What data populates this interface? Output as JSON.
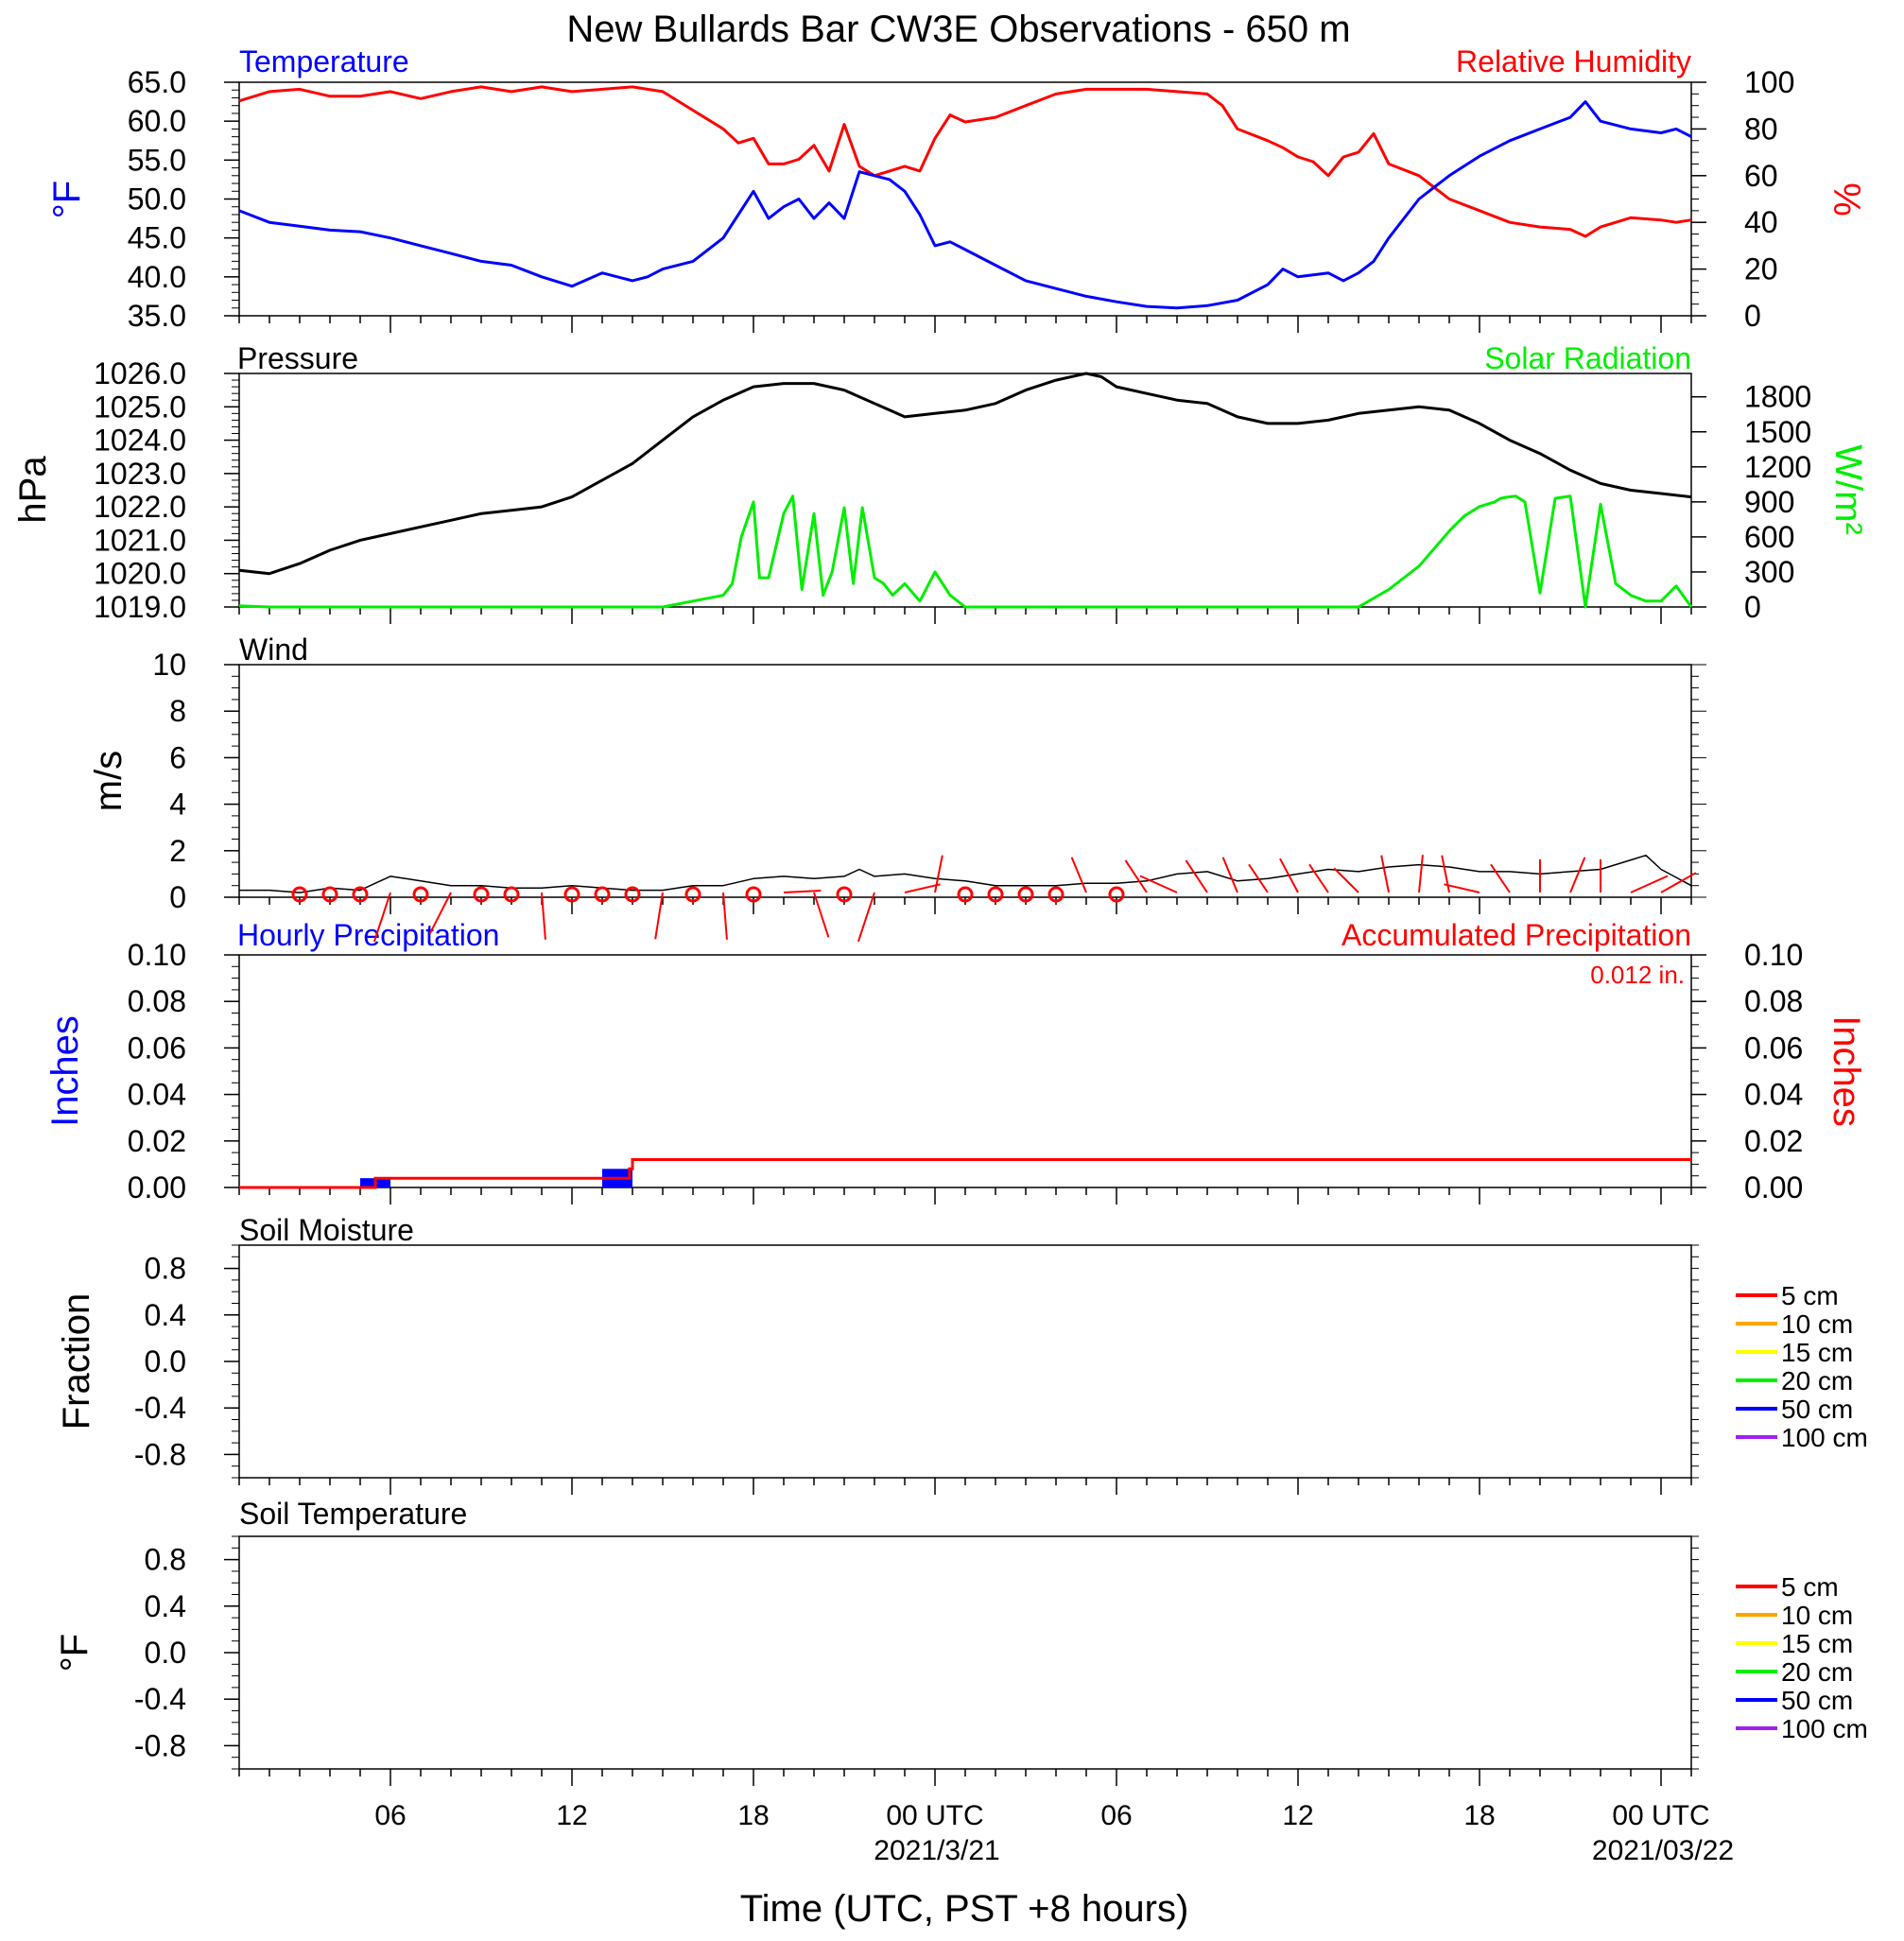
{
  "title": "New Bullards Bar CW3E Observations - 650 m",
  "xlabel": "Time (UTC, PST +8 hours)",
  "x_tick_labels": [
    "06",
    "12",
    "18",
    "00 UTC",
    "06",
    "12",
    "18",
    "00 UTC"
  ],
  "date_labels": [
    "2021/3/21",
    "2021/03/22"
  ],
  "colors": {
    "temperature": "#0000ff",
    "humidity": "#ff0000",
    "pressure": "#000000",
    "solar": "#00ee00",
    "wind": "#000000",
    "wind_barb": "#ff0000",
    "hourly_precip": "#0000ff",
    "accum_precip": "#ff0000"
  },
  "panels": {
    "temp_rh": {
      "left_title": "Temperature",
      "right_title": "Relative Humidity",
      "left_unit": "°F",
      "right_unit": "%",
      "left_ticks": [
        "65.0",
        "60.0",
        "55.0",
        "50.0",
        "45.0",
        "40.0",
        "35.0"
      ],
      "right_ticks": [
        "100",
        "80",
        "60",
        "40",
        "20",
        "0"
      ]
    },
    "pressure_solar": {
      "left_title": "Pressure",
      "right_title": "Solar Radiation",
      "left_unit": "hPa",
      "right_unit": "W/m²",
      "left_ticks": [
        "1026.0",
        "1025.0",
        "1024.0",
        "1023.0",
        "1022.0",
        "1021.0",
        "1020.0",
        "1019.0"
      ],
      "right_ticks": [
        "1800",
        "1500",
        "1200",
        "900",
        "600",
        "300",
        "0"
      ]
    },
    "wind": {
      "left_title": "Wind",
      "left_unit": "m/s",
      "left_ticks": [
        "10",
        "8",
        "6",
        "4",
        "2",
        "0"
      ]
    },
    "precip": {
      "left_title": "Hourly Precipitation",
      "right_title": "Accumulated Precipitation",
      "total_label": "0.012 in.",
      "left_unit": "Inches",
      "right_unit": "Inches",
      "left_ticks": [
        "0.10",
        "0.08",
        "0.06",
        "0.04",
        "0.02",
        "0.00"
      ],
      "right_ticks": [
        "0.10",
        "0.08",
        "0.06",
        "0.04",
        "0.02",
        "0.00"
      ]
    },
    "soil_moisture": {
      "left_title": "Soil Moisture",
      "left_unit": "Fraction",
      "left_ticks": [
        "0.8",
        "0.4",
        "0.0",
        "-0.4",
        "-0.8"
      ],
      "legend": [
        "5 cm",
        "10 cm",
        "15 cm",
        "20 cm",
        "50 cm",
        "100 cm"
      ]
    },
    "soil_temperature": {
      "left_title": "Soil Temperature",
      "left_unit": "°F",
      "left_ticks": [
        "0.8",
        "0.4",
        "0.0",
        "-0.4",
        "-0.8"
      ],
      "legend": [
        "5 cm",
        "10 cm",
        "15 cm",
        "20 cm",
        "50 cm",
        "100 cm"
      ]
    }
  },
  "legend_colors": [
    "#ff0000",
    "#ffa500",
    "#ffff00",
    "#00ee00",
    "#0000ff",
    "#a020f0"
  ],
  "chart_data": [
    {
      "type": "line",
      "title": "Temperature / Relative Humidity",
      "x_unit": "hours since 2021/3/20 00 UTC",
      "xlim": [
        1,
        49
      ],
      "series": [
        {
          "name": "Temperature",
          "axis": "left",
          "ylim": [
            35,
            65
          ],
          "x": [
            1,
            2,
            3,
            4,
            5,
            6,
            7,
            8,
            9,
            10,
            11,
            12,
            13,
            14,
            14.5,
            15,
            16,
            17,
            17.5,
            18,
            18.5,
            19,
            19.5,
            20,
            20.5,
            21,
            21.5,
            22,
            22.5,
            23,
            23.5,
            24,
            24.5,
            25,
            26,
            27,
            28,
            29,
            30,
            31,
            32,
            33,
            34,
            35,
            35.5,
            36,
            37,
            37.5,
            38,
            38.5,
            39,
            40,
            40.5,
            41,
            42,
            43,
            44,
            45,
            45.5,
            46,
            47,
            48,
            48.5,
            49
          ],
          "y": [
            48.5,
            47,
            46.5,
            46,
            45.8,
            45,
            44,
            43,
            42,
            41.5,
            40,
            38.8,
            40.5,
            39.5,
            40,
            41,
            42,
            45,
            48,
            51,
            47.5,
            49,
            50,
            47.5,
            49.5,
            47.5,
            53.5,
            53,
            52.5,
            51,
            48,
            44,
            44.5,
            43.5,
            41.5,
            39.5,
            38.5,
            37.5,
            36.8,
            36.2,
            36,
            36.3,
            37,
            39,
            41,
            40,
            40.5,
            39.5,
            40.5,
            42,
            45,
            50,
            51.5,
            53,
            55.5,
            57.5,
            59,
            60.5,
            62.5,
            60,
            59,
            58.5,
            59,
            58
          ]
        },
        {
          "name": "Relative Humidity",
          "axis": "right",
          "ylim": [
            0,
            100
          ],
          "x": [
            1,
            2,
            3,
            4,
            5,
            6,
            7,
            8,
            9,
            10,
            11,
            12,
            13,
            14,
            15,
            16,
            17,
            17.5,
            18,
            18.5,
            19,
            19.5,
            20,
            20.5,
            21,
            21.5,
            22,
            22.5,
            23,
            23.5,
            24,
            24.5,
            25,
            26,
            27,
            28,
            29,
            30,
            31,
            32,
            33,
            33.5,
            34,
            35,
            35.5,
            36,
            36.5,
            37,
            37.5,
            38,
            38.5,
            39,
            40,
            41,
            42,
            43,
            44,
            45,
            45.5,
            46,
            47,
            48,
            48.5,
            49
          ],
          "y": [
            92,
            96,
            97,
            94,
            94,
            96,
            93,
            96,
            98,
            96,
            98,
            96,
            97,
            98,
            96,
            88,
            80,
            74,
            76,
            65,
            65,
            67,
            73,
            62,
            82,
            64,
            60,
            62,
            64,
            62,
            76,
            86,
            83,
            85,
            90,
            95,
            97,
            97,
            97,
            96,
            95,
            90,
            80,
            75,
            72,
            68,
            66,
            60,
            68,
            70,
            78,
            65,
            60,
            50,
            45,
            40,
            38,
            37,
            34,
            38,
            42,
            41,
            40,
            41
          ]
        }
      ]
    },
    {
      "type": "line",
      "title": "Pressure / Solar Radiation",
      "x_unit": "hours since 2021/3/20 00 UTC",
      "xlim": [
        1,
        49
      ],
      "series": [
        {
          "name": "Pressure",
          "axis": "left",
          "ylim": [
            1019,
            1026
          ],
          "x": [
            1,
            2,
            3,
            4,
            5,
            6,
            7,
            8,
            9,
            10,
            11,
            12,
            13,
            14,
            15,
            16,
            17,
            18,
            19,
            20,
            21,
            22,
            22.5,
            23,
            24,
            25,
            26,
            27,
            28,
            29,
            29.5,
            30,
            31,
            32,
            33,
            34,
            35,
            36,
            37,
            38,
            39,
            40,
            41,
            42,
            43,
            44,
            45,
            46,
            47,
            48,
            49
          ],
          "y": [
            1020.1,
            1020.0,
            1020.3,
            1020.7,
            1021.0,
            1021.2,
            1021.4,
            1021.6,
            1021.8,
            1021.9,
            1022.0,
            1022.3,
            1022.8,
            1023.3,
            1024.0,
            1024.7,
            1025.2,
            1025.6,
            1025.7,
            1025.7,
            1025.5,
            1025.1,
            1024.9,
            1024.7,
            1024.8,
            1024.9,
            1025.1,
            1025.5,
            1025.8,
            1026.0,
            1025.9,
            1025.6,
            1025.4,
            1025.2,
            1025.1,
            1024.7,
            1024.5,
            1024.5,
            1024.6,
            1024.8,
            1024.9,
            1025.0,
            1024.9,
            1024.5,
            1024.0,
            1023.6,
            1023.1,
            1022.7,
            1022.5,
            1022.4,
            1022.3
          ]
        },
        {
          "name": "Solar Radiation",
          "axis": "right",
          "ylim": [
            0,
            2000
          ],
          "x": [
            1,
            2,
            14,
            15,
            16,
            17,
            17.3,
            17.6,
            18,
            18.2,
            18.5,
            19,
            19.3,
            19.6,
            20,
            20.3,
            20.6,
            21,
            21.3,
            21.6,
            22,
            22.3,
            22.6,
            23,
            23.5,
            24,
            24.5,
            25,
            26,
            30,
            35,
            36.5,
            37,
            38,
            39,
            40,
            40.5,
            41,
            41.5,
            42,
            42.5,
            42.7,
            42.9,
            43.2,
            43.5,
            44,
            44.5,
            45,
            45.5,
            46,
            46.5,
            47,
            47.5,
            48,
            48.5,
            49
          ],
          "y": [
            10,
            0,
            0,
            0,
            50,
            100,
            200,
            600,
            900,
            250,
            250,
            800,
            950,
            150,
            800,
            100,
            300,
            850,
            200,
            850,
            250,
            200,
            100,
            200,
            50,
            300,
            100,
            0,
            0,
            0,
            0,
            0,
            0,
            0,
            150,
            350,
            500,
            650,
            780,
            860,
            900,
            930,
            940,
            950,
            900,
            120,
            930,
            950,
            0,
            880,
            200,
            100,
            50,
            50,
            180,
            0
          ]
        }
      ]
    },
    {
      "type": "line",
      "title": "Wind",
      "x_unit": "hours since 2021/3/20 00 UTC",
      "xlim": [
        1,
        49
      ],
      "ylim": [
        0,
        10
      ],
      "ylabel": "m/s",
      "series": [
        {
          "name": "Wind speed",
          "x": [
            1,
            2,
            3,
            4,
            5,
            5.5,
            6,
            6.5,
            7,
            8,
            9,
            10,
            11,
            12,
            13,
            14,
            15,
            16,
            17,
            18,
            19,
            20,
            21,
            21.5,
            22,
            23,
            24,
            25,
            26,
            27,
            28,
            29,
            30,
            31,
            32,
            33,
            34,
            35,
            36,
            37,
            38,
            39,
            40,
            41,
            42,
            43,
            44,
            45,
            46,
            47,
            47.5,
            48,
            49
          ],
          "y": [
            0.3,
            0.3,
            0.2,
            0.4,
            0.3,
            0.6,
            0.9,
            0.8,
            0.7,
            0.5,
            0.5,
            0.4,
            0.4,
            0.5,
            0.4,
            0.3,
            0.3,
            0.5,
            0.5,
            0.8,
            0.9,
            0.8,
            0.9,
            1.2,
            0.9,
            1.0,
            0.8,
            0.7,
            0.5,
            0.5,
            0.5,
            0.6,
            0.6,
            0.7,
            1.0,
            1.1,
            0.7,
            0.8,
            1.0,
            1.2,
            1.1,
            1.3,
            1.4,
            1.3,
            1.1,
            1.1,
            1.0,
            1.1,
            1.2,
            1.6,
            1.8,
            1.2,
            0.5
          ]
        }
      ]
    },
    {
      "type": "bar",
      "title": "Hourly / Accumulated Precipitation",
      "x_unit": "hours since 2021/3/20 00 UTC",
      "xlim": [
        1,
        49
      ],
      "ylim": [
        0,
        0.1
      ],
      "series": [
        {
          "name": "Hourly Precipitation",
          "kind": "bar",
          "x": [
            5.5,
            13.5
          ],
          "y": [
            0.004,
            0.008
          ]
        },
        {
          "name": "Accumulated Precipitation",
          "kind": "step",
          "x": [
            1,
            5,
            5.5,
            13.5,
            13.9,
            14.0,
            49
          ],
          "y": [
            0,
            0,
            0.004,
            0.004,
            0.008,
            0.012,
            0.012
          ]
        }
      ]
    }
  ],
  "wind_barbs": [
    {
      "x": 3,
      "calm": true
    },
    {
      "x": 4,
      "calm": true
    },
    {
      "x": 5,
      "calm": true
    },
    {
      "x": 6,
      "dir": 200,
      "len": 50
    },
    {
      "x": 7,
      "calm": true
    },
    {
      "x": 8,
      "dir": 210,
      "len": 45
    },
    {
      "x": 9,
      "calm": true
    },
    {
      "x": 10,
      "calm": true
    },
    {
      "x": 11,
      "dir": 175,
      "len": 45
    },
    {
      "x": 12,
      "calm": true
    },
    {
      "x": 13,
      "calm": true
    },
    {
      "x": 14,
      "calm": true
    },
    {
      "x": 15,
      "dir": 190,
      "len": 45
    },
    {
      "x": 16,
      "calm": true
    },
    {
      "x": 17,
      "dir": 175,
      "len": 45
    },
    {
      "x": 18,
      "calm": true
    },
    {
      "x": 19,
      "dir": 80,
      "len": 40
    },
    {
      "x": 20,
      "dir": 160,
      "len": 45
    },
    {
      "x": 21,
      "calm": true
    },
    {
      "x": 22,
      "dir": 200,
      "len": 50
    },
    {
      "x": 23,
      "dir": 70,
      "len": 40
    },
    {
      "x": 24,
      "dir": 10,
      "len": 45
    },
    {
      "x": 25,
      "calm": true
    },
    {
      "x": 26,
      "calm": true
    },
    {
      "x": 27,
      "calm": true
    },
    {
      "x": 28,
      "calm": true
    },
    {
      "x": 29,
      "dir": 340,
      "len": 45
    },
    {
      "x": 30,
      "calm": true
    },
    {
      "x": 31,
      "dir": 330,
      "len": 45
    },
    {
      "x": 32,
      "dir": 300,
      "len": 45
    },
    {
      "x": 33,
      "dir": 330,
      "len": 45
    },
    {
      "x": 34,
      "dir": 340,
      "len": 45
    },
    {
      "x": 35,
      "dir": 330,
      "len": 40
    },
    {
      "x": 36,
      "dir": 335,
      "len": 45
    },
    {
      "x": 37,
      "dir": 330,
      "len": 40
    },
    {
      "x": 38,
      "dir": 320,
      "len": 40
    },
    {
      "x": 39,
      "dir": 350,
      "len": 45
    },
    {
      "x": 40,
      "dir": 5,
      "len": 45
    },
    {
      "x": 41,
      "dir": 350,
      "len": 45
    },
    {
      "x": 42,
      "dir": 290,
      "len": 40
    },
    {
      "x": 43,
      "dir": 330,
      "len": 40
    },
    {
      "x": 44,
      "dir": 0,
      "len": 40
    },
    {
      "x": 45,
      "dir": 20,
      "len": 45
    },
    {
      "x": 46,
      "dir": 0,
      "len": 40
    },
    {
      "x": 47,
      "dir": 60,
      "len": 45
    },
    {
      "x": 48,
      "dir": 55,
      "len": 45
    }
  ]
}
